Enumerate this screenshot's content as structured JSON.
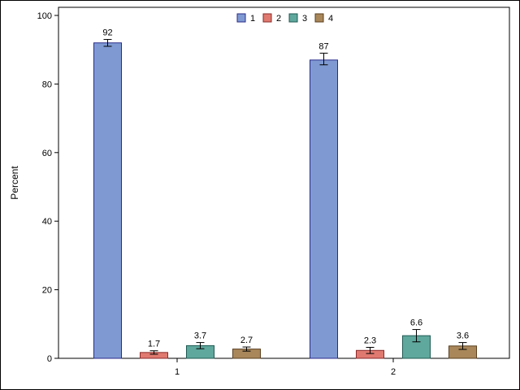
{
  "chart_data": {
    "type": "bar",
    "ylabel": "Percent",
    "ylim": [
      0,
      100
    ],
    "yticks": [
      "0",
      "20",
      "40",
      "60",
      "80",
      "100"
    ],
    "categories": [
      "1",
      "2"
    ],
    "legend": {
      "placement": "top-center",
      "entries": [
        "1",
        "2",
        "3",
        "4"
      ]
    },
    "series": [
      {
        "name": "1",
        "color": "#7f9ad2",
        "stroke": "#2a2a8a",
        "values": [
          92,
          87
        ],
        "labels": [
          "92",
          "87"
        ],
        "err_low": [
          91.0,
          85.6
        ],
        "err_high": [
          93.0,
          89.0
        ]
      },
      {
        "name": "2",
        "color": "#e07a70",
        "stroke": "#8a2a2a",
        "values": [
          1.7,
          2.3
        ],
        "labels": [
          "1.7",
          "2.3"
        ],
        "err_low": [
          1.2,
          1.4
        ],
        "err_high": [
          2.2,
          3.2
        ]
      },
      {
        "name": "3",
        "color": "#5fa89d",
        "stroke": "#1f5a52",
        "values": [
          3.7,
          6.6
        ],
        "labels": [
          "3.7",
          "6.6"
        ],
        "err_low": [
          2.8,
          4.8
        ],
        "err_high": [
          4.6,
          8.4
        ]
      },
      {
        "name": "4",
        "color": "#a9875a",
        "stroke": "#5a3f1e",
        "values": [
          2.7,
          3.6
        ],
        "labels": [
          "2.7",
          "3.6"
        ],
        "err_low": [
          2.1,
          2.6
        ],
        "err_high": [
          3.3,
          4.6
        ]
      }
    ],
    "grid": false
  }
}
